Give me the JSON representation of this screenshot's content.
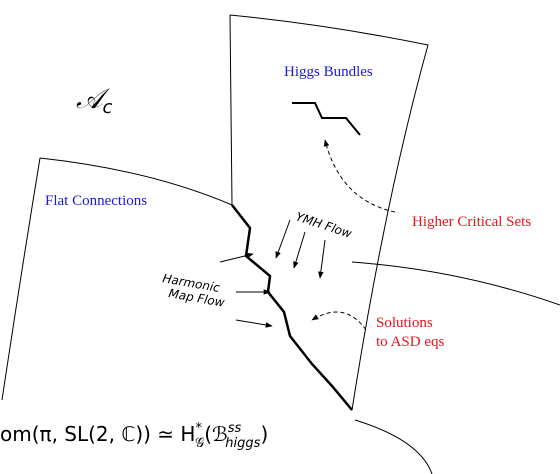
{
  "labels": {
    "space": {
      "base": "𝒜",
      "sub": "c"
    },
    "higgs_bundles": "Higgs Bundles",
    "flat_connections": "Flat Connections",
    "ymh_flow": "YMH Flow",
    "higher_critical_sets": "Higher Critical Sets",
    "harmonic_map_flow": [
      "Harmonic",
      "Map Flow"
    ],
    "solutions": [
      "Solutions",
      "to ASD eqs"
    ],
    "formula": {
      "main": "om(π, SL(2, ℂ)) ≃ H",
      "h_sup": "*",
      "h_sub": "𝒢",
      "open": "(ℬ",
      "b_sup": "ss",
      "b_sub": "higgs",
      "close": ")"
    }
  }
}
